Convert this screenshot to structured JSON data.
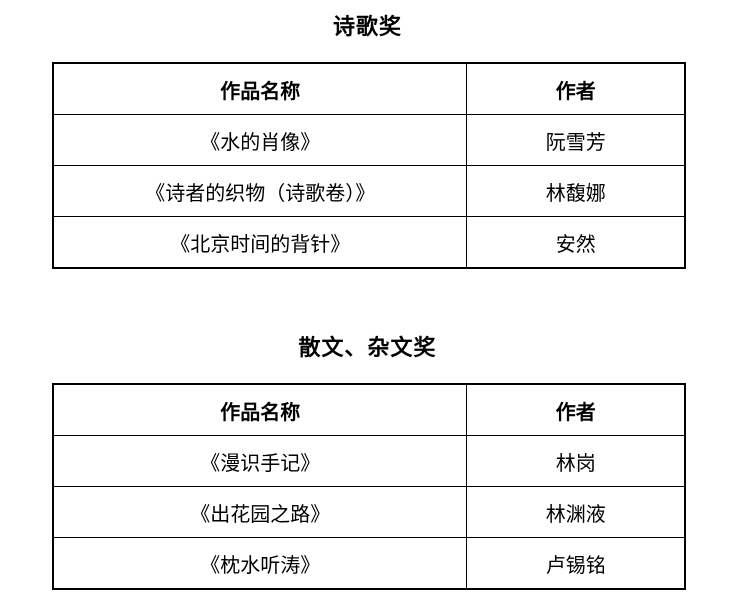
{
  "page": {
    "background_color": "#ffffff",
    "text_color": "#000000",
    "border_color": "#000000"
  },
  "sections": [
    {
      "title": "诗歌奖",
      "table": {
        "headers": [
          "作品名称",
          "作者"
        ],
        "rows": [
          [
            "《水的肖像》",
            "阮雪芳"
          ],
          [
            "《诗者的织物（诗歌卷）》",
            "林馥娜"
          ],
          [
            "《北京时间的背针》",
            "安然"
          ]
        ]
      }
    },
    {
      "title": "散文、杂文奖",
      "table": {
        "headers": [
          "作品名称",
          "作者"
        ],
        "rows": [
          [
            "《漫识手记》",
            "林岗"
          ],
          [
            "《出花园之路》",
            "林渊液"
          ],
          [
            "《枕水听涛》",
            "卢锡铭"
          ]
        ]
      }
    }
  ]
}
